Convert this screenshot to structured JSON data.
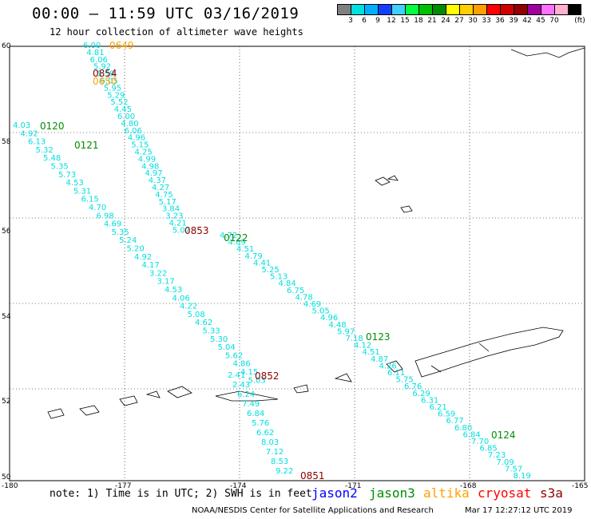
{
  "header": {
    "title": "00:00 – 11:59 UTC 03/16/2019",
    "subtitle": "12 hour collection of altimeter wave heights"
  },
  "color_scale": {
    "unit_label": "(ft)",
    "colors": [
      "#808080",
      "#00e0e0",
      "#00b0ff",
      "#1040ff",
      "#40d0ff",
      "#00ff40",
      "#00c000",
      "#008c00",
      "#ffff00",
      "#ffd000",
      "#ffa000",
      "#ff0000",
      "#d00000",
      "#900000",
      "#a000a0",
      "#ff70ff",
      "#ffb0d0",
      "#000000"
    ],
    "ticks": [
      "3",
      "6",
      "9",
      "12",
      "15",
      "18",
      "21",
      "24",
      "27",
      "30",
      "33",
      "36",
      "39",
      "42",
      "45",
      "70"
    ]
  },
  "map": {
    "lat_labels": [
      "60",
      "58",
      "56",
      "54",
      "52",
      "50"
    ],
    "lon_labels": [
      "-180",
      "-177",
      "-174",
      "-171",
      "-168",
      "-165"
    ],
    "pass_colors": {
      "jason2": "#0000ff",
      "jason3": "#008c00",
      "altika": "#ffa000",
      "cryosat": "#ff0000",
      "s3a": "#8c0000"
    },
    "pass_labels": [
      {
        "text": "0649",
        "sat": "altika"
      },
      {
        "text": "0854",
        "sat": "s3a"
      },
      {
        "text": "0650",
        "sat": "altika"
      },
      {
        "text": "0120",
        "sat": "jason3"
      },
      {
        "text": "0121",
        "sat": "jason3"
      },
      {
        "text": "0853",
        "sat": "s3a"
      },
      {
        "text": "0122",
        "sat": "jason3"
      },
      {
        "text": "0123",
        "sat": "jason3"
      },
      {
        "text": "0852",
        "sat": "s3a"
      },
      {
        "text": "0124",
        "sat": "jason3"
      },
      {
        "text": "0851",
        "sat": "s3a"
      }
    ],
    "wave_values_track1": [
      "6.00",
      "4.81",
      "6.06",
      "5.92",
      "5.59",
      "6.05",
      "5.95",
      "5.29",
      "5.52",
      "4.45",
      "6.00",
      "4.80",
      "6.06",
      "4.96",
      "5.15",
      "4.25",
      "4.99",
      "4.98",
      "4.97",
      "4.37",
      "4.27",
      "4.75",
      "5.17",
      "3.84",
      "3.23",
      "4.21",
      "5.07"
    ],
    "wave_values_track2": [
      "4.03",
      "4.92",
      "6.13",
      "5.32",
      "5.48",
      "5.35",
      "5.73",
      "4.53",
      "5.31",
      "6.15",
      "4.70",
      "6.98",
      "4.69",
      "5.35",
      "5.24",
      "5.20",
      "4.92",
      "4.17",
      "3.22",
      "3.17",
      "4.53",
      "4.06",
      "4.22",
      "5.08",
      "4.62",
      "5.33",
      "5.30",
      "5.04",
      "5.62",
      "4.86",
      "4.15",
      "5.03"
    ],
    "wave_values_track3": [
      "4.72",
      "4.69",
      "4.51",
      "4.79",
      "4.41",
      "5.25",
      "5.13",
      "4.84",
      "6.75",
      "4.78",
      "4.69",
      "5.05",
      "4.96",
      "4.48",
      "5.97",
      "7.18",
      "4.12",
      "4.51",
      "4.87",
      "4.26",
      "6.11",
      "5.75",
      "6.76",
      "6.29",
      "6.31",
      "6.21",
      "6.59",
      "6.77",
      "6.80",
      "6.84",
      "7.70",
      "6.85",
      "7.23",
      "7.09",
      "7.57",
      "8.19"
    ],
    "wave_values_track4": [
      "2.41",
      "2.43",
      "6.24",
      "7.49",
      "6.84",
      "5.76",
      "6.62",
      "8.03",
      "7.12",
      "8.53",
      "9.22"
    ]
  },
  "legend": {
    "jason2": "jason2",
    "jason3": "jason3",
    "altika": "altika",
    "cryosat": "cryosat",
    "s3a": "s3a"
  },
  "footer": {
    "note": "note: 1) Time is in UTC; 2) SWH is in feet",
    "credit": "NOAA/NESDIS Center for Satellite Applications and Research",
    "timestamp": "Mar 17 12:27:12 UTC 2019"
  }
}
